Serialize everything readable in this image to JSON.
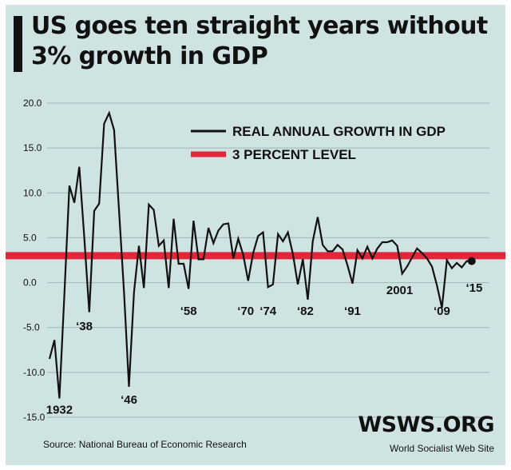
{
  "title": "US goes ten straight years without 3% growth in GDP",
  "source": "Source: National Bureau of Economic Research",
  "brand": {
    "name": "WSWS.ORG",
    "subtitle": "World Socialist Web Site"
  },
  "colors": {
    "background": "#cfe3e3",
    "gdp_line": "#111111",
    "threshold_line": "#e3263a",
    "gridline": "#9fb6b6"
  },
  "chart_data": {
    "type": "line",
    "title": "US goes ten straight years without 3% growth in GDP",
    "xlabel": "",
    "ylabel": "",
    "ylim": [
      -15,
      20
    ],
    "xlim": [
      1930,
      2016
    ],
    "grid": true,
    "legend_position": "top-right",
    "y_ticks": [
      "20.0",
      "15.0",
      "10.0",
      "5.0",
      "0.0",
      "-5.0",
      "-10.0",
      "-15.0"
    ],
    "series": [
      {
        "name": "REAL ANNUAL GROWTH IN GDP",
        "color": "#111111",
        "x": [
          1930,
          1931,
          1932,
          1933,
          1934,
          1935,
          1936,
          1937,
          1938,
          1939,
          1940,
          1941,
          1942,
          1943,
          1944,
          1945,
          1946,
          1947,
          1948,
          1949,
          1950,
          1951,
          1952,
          1953,
          1954,
          1955,
          1956,
          1957,
          1958,
          1959,
          1960,
          1961,
          1962,
          1963,
          1964,
          1965,
          1966,
          1967,
          1968,
          1969,
          1970,
          1971,
          1972,
          1973,
          1974,
          1975,
          1976,
          1977,
          1978,
          1979,
          1980,
          1981,
          1982,
          1983,
          1984,
          1985,
          1986,
          1987,
          1988,
          1989,
          1990,
          1991,
          1992,
          1993,
          1994,
          1995,
          1996,
          1997,
          1998,
          1999,
          2000,
          2001,
          2002,
          2003,
          2004,
          2005,
          2006,
          2007,
          2008,
          2009,
          2010,
          2011,
          2012,
          2013,
          2014,
          2015
        ],
        "values": [
          -8.5,
          -6.4,
          -12.9,
          -1.2,
          10.8,
          8.9,
          12.9,
          5.1,
          -3.3,
          8.0,
          8.8,
          17.7,
          18.9,
          17.0,
          8.0,
          -1.0,
          -11.6,
          -1.1,
          4.1,
          -0.6,
          8.7,
          8.1,
          4.1,
          4.7,
          -0.6,
          7.1,
          2.1,
          2.1,
          -0.7,
          6.9,
          2.6,
          2.6,
          6.1,
          4.4,
          5.8,
          6.5,
          6.6,
          2.7,
          4.9,
          3.1,
          0.2,
          3.3,
          5.2,
          5.6,
          -0.5,
          -0.2,
          5.4,
          4.6,
          5.6,
          3.2,
          -0.2,
          2.6,
          -1.9,
          4.6,
          7.3,
          4.2,
          3.5,
          3.5,
          4.2,
          3.7,
          1.9,
          -0.1,
          3.6,
          2.7,
          4.0,
          2.7,
          3.8,
          4.5,
          4.5,
          4.7,
          4.1,
          1.0,
          1.8,
          2.8,
          3.8,
          3.3,
          2.7,
          1.8,
          -0.3,
          -2.8,
          2.5,
          1.6,
          2.2,
          1.7,
          2.4,
          2.4
        ]
      },
      {
        "name": "3 PERCENT LEVEL",
        "color": "#e3263a",
        "x": [
          1930,
          2016
        ],
        "values": [
          3,
          3
        ]
      }
    ],
    "annotations": [
      {
        "text": "1932",
        "x": 1932
      },
      {
        "text": "‘38",
        "x": 1938
      },
      {
        "text": "‘46",
        "x": 1946
      },
      {
        "text": "‘58",
        "x": 1958
      },
      {
        "text": "‘70",
        "x": 1970
      },
      {
        "text": "‘74",
        "x": 1974
      },
      {
        "text": "‘82",
        "x": 1982
      },
      {
        "text": "‘91",
        "x": 1991
      },
      {
        "text": "2001",
        "x": 2001
      },
      {
        "text": "‘09",
        "x": 2009
      },
      {
        "text": "‘15",
        "x": 2015
      }
    ]
  }
}
